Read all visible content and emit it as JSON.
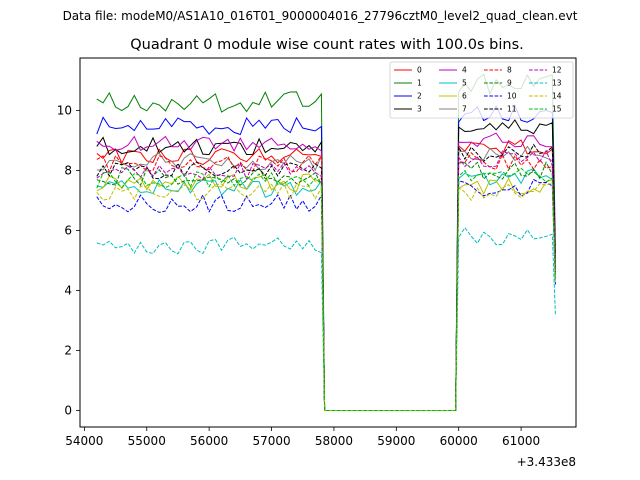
{
  "figure": {
    "suptitle": "Data file: modeM0/AS1A10_016T01_9000004016_27796cztM0_level2_quad_clean.evt"
  },
  "chart_data": {
    "type": "line",
    "title": "Quadrant 0 module wise count rates with 100.0s bins.",
    "xlabel": "",
    "ylabel": "",
    "x_offset_label": "+3.433e8",
    "xlim": [
      53930,
      61880
    ],
    "ylim": [
      -0.55,
      11.75
    ],
    "xticks": [
      54000,
      55000,
      56000,
      57000,
      58000,
      59000,
      60000,
      61000
    ],
    "xtick_labels": [
      "54000",
      "55000",
      "56000",
      "57000",
      "58000",
      "59000",
      "60000",
      "61000"
    ],
    "yticks": [
      0,
      2,
      4,
      6,
      8,
      10
    ],
    "ytick_labels": [
      "0",
      "2",
      "4",
      "6",
      "8",
      "10"
    ],
    "grid": false,
    "legend_position": "top-right",
    "segments": {
      "seg1": {
        "x_start": 54200,
        "x_end": 57800,
        "step": 100
      },
      "gap": {
        "x_start": 57850,
        "x_end": 59950,
        "value": 0
      },
      "seg2": {
        "x_start": 60000,
        "x_end": 61500,
        "step": 100
      },
      "drop_x": 61550
    },
    "series": [
      {
        "name": "0",
        "color": "#ff0000",
        "dash": "solid",
        "base1": 8.5,
        "base2": 8.8,
        "noise": 0.3,
        "drop": 4.8
      },
      {
        "name": "1",
        "color": "#008000",
        "dash": "solid",
        "base1": 10.3,
        "base2": 10.9,
        "noise": 0.35,
        "drop": 5.5
      },
      {
        "name": "2",
        "color": "#0000ff",
        "dash": "solid",
        "base1": 9.5,
        "base2": 9.9,
        "noise": 0.3,
        "drop": 5.0
      },
      {
        "name": "3",
        "color": "#000000",
        "dash": "solid",
        "base1": 8.8,
        "base2": 9.4,
        "noise": 0.3,
        "drop": 5.2
      },
      {
        "name": "4",
        "color": "#bf00bf",
        "dash": "solid",
        "base1": 8.9,
        "base2": 9.0,
        "noise": 0.25,
        "drop": 5.0
      },
      {
        "name": "5",
        "color": "#00bfbf",
        "dash": "solid",
        "base1": 7.4,
        "base2": 7.8,
        "noise": 0.3,
        "drop": 4.5
      },
      {
        "name": "6",
        "color": "#bfbf00",
        "dash": "solid",
        "base1": 7.6,
        "base2": 7.5,
        "noise": 0.3,
        "drop": 4.4
      },
      {
        "name": "7",
        "color": "#808080",
        "dash": "solid",
        "base1": 8.3,
        "base2": 8.6,
        "noise": 0.3,
        "drop": 4.9
      },
      {
        "name": "8",
        "color": "#ff0000",
        "dash": "dashed",
        "base1": 8.2,
        "base2": 8.3,
        "noise": 0.3,
        "drop": 4.6
      },
      {
        "name": "9",
        "color": "#008000",
        "dash": "dashed",
        "base1": 7.8,
        "base2": 8.0,
        "noise": 0.3,
        "drop": 4.5
      },
      {
        "name": "10",
        "color": "#0000ff",
        "dash": "dashed",
        "base1": 6.9,
        "base2": 7.4,
        "noise": 0.3,
        "drop": 4.2
      },
      {
        "name": "11",
        "color": "#000000",
        "dash": "dashed",
        "base1": 8.0,
        "base2": 8.6,
        "noise": 0.3,
        "drop": 4.7
      },
      {
        "name": "12",
        "color": "#bf00bf",
        "dash": "dashed",
        "base1": 8.0,
        "base2": 8.4,
        "noise": 0.3,
        "drop": 4.6
      },
      {
        "name": "13",
        "color": "#00bfbf",
        "dash": "dashed",
        "base1": 5.5,
        "base2": 5.8,
        "noise": 0.3,
        "drop": 3.2
      },
      {
        "name": "14",
        "color": "#bfbf00",
        "dash": "dashed",
        "base1": 7.3,
        "base2": 7.3,
        "noise": 0.3,
        "drop": 4.3
      },
      {
        "name": "15",
        "color": "#00bf00",
        "dash": "dashed",
        "base1": 7.7,
        "base2": 7.9,
        "noise": 0.3,
        "drop": 4.4
      }
    ]
  }
}
